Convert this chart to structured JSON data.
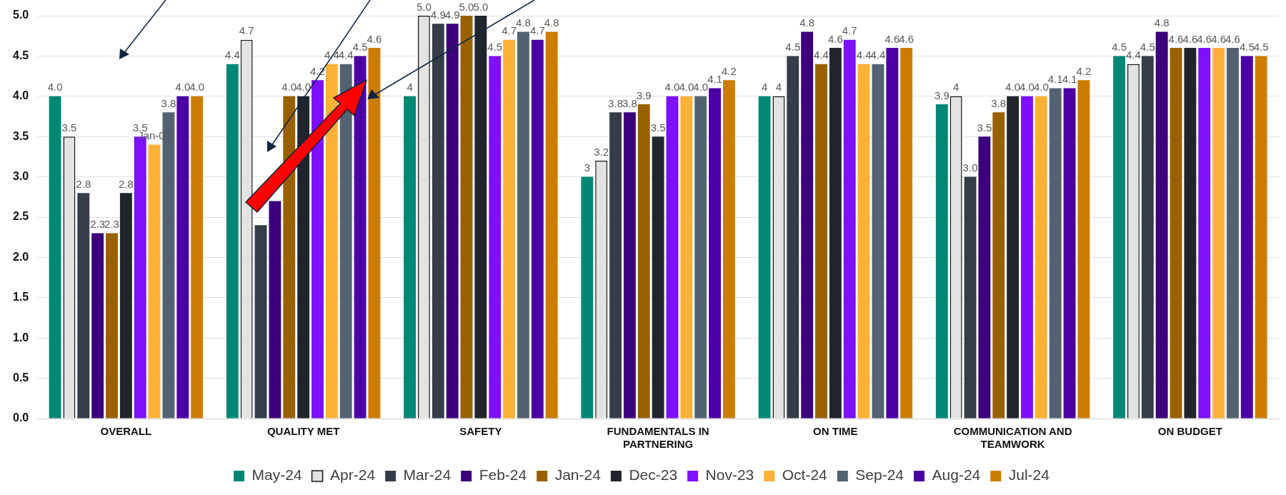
{
  "chart_data": {
    "type": "bar",
    "categories": [
      "OVERALL",
      "QUALITY MET",
      "SAFETY",
      "FUNDAMENTALS IN PARTNERING",
      "ON TIME",
      "COMMUNICATION AND TEAMWORK",
      "ON BUDGET"
    ],
    "series": [
      {
        "name": "May-24",
        "color": "#008875",
        "values": [
          4.0,
          4.4,
          4.0,
          3.0,
          4.0,
          3.9,
          4.5
        ],
        "value_labels": [
          "4.0",
          "4.4",
          "4",
          "3",
          "4",
          "3.9",
          "4.5"
        ]
      },
      {
        "name": "Apr-24",
        "color": "#e3e3e3",
        "values": [
          3.5,
          4.7,
          5.0,
          3.2,
          4.0,
          4.0,
          4.4
        ],
        "value_labels": [
          "3.5",
          "4.7",
          "5.0",
          "3.2",
          "4",
          "4",
          "4.4"
        ]
      },
      {
        "name": "Mar-24",
        "color": "#343d48",
        "values": [
          2.8,
          2.4,
          4.9,
          3.8,
          4.5,
          3.0,
          4.5
        ],
        "value_labels": [
          "2.8",
          null,
          "4.9",
          "3.8",
          "4.5",
          "3.0",
          "4.5"
        ]
      },
      {
        "name": "Feb-24",
        "color": "#3b007a",
        "values": [
          2.3,
          2.7,
          4.9,
          3.8,
          4.8,
          3.5,
          4.8
        ],
        "value_labels": [
          "2.3",
          null,
          "4.9",
          "3.8",
          "4.8",
          "3.5",
          "4.8"
        ]
      },
      {
        "name": "Jan-24",
        "color": "#996000",
        "values": [
          2.3,
          4.0,
          5.0,
          3.9,
          4.4,
          3.8,
          4.6
        ],
        "value_labels": [
          "2.3",
          "4.0",
          "5.0",
          "3.9",
          "4.4",
          "3.8",
          "4.6"
        ]
      },
      {
        "name": "Dec-23",
        "color": "#20252d",
        "values": [
          2.8,
          4.0,
          5.0,
          3.5,
          4.6,
          4.0,
          4.6
        ],
        "value_labels": [
          "2.8",
          "4.0",
          "5.0",
          "3.5",
          "4.6",
          "4.0",
          "4.6"
        ]
      },
      {
        "name": "Nov-23",
        "color": "#7c10ff",
        "values": [
          3.5,
          4.2,
          4.5,
          4.0,
          4.7,
          4.0,
          4.6
        ],
        "value_labels": [
          "3.5",
          "4.2",
          "4.5",
          "4.0",
          "4.7",
          "4.0",
          "4.6"
        ]
      },
      {
        "name": "Oct-24",
        "color": "#fdb136",
        "values": [
          3.4,
          4.4,
          4.7,
          4.0,
          4.4,
          4.0,
          4.6
        ],
        "value_labels": [
          "Jan-00",
          "4.4",
          "4.7",
          "4.0",
          "4.4",
          "4.0",
          "4.6"
        ]
      },
      {
        "name": "Sep-24",
        "color": "#536273",
        "values": [
          3.8,
          4.4,
          4.8,
          4.0,
          4.4,
          4.1,
          4.6
        ],
        "value_labels": [
          "3.8",
          "4.4",
          "4.8",
          "4.0",
          "4.4",
          "4.1",
          "4.6"
        ]
      },
      {
        "name": "Aug-24",
        "color": "#4b00a4",
        "values": [
          4.0,
          4.5,
          4.7,
          4.1,
          4.6,
          4.1,
          4.5
        ],
        "value_labels": [
          "4.0",
          "4.5",
          "4.7",
          "4.1",
          "4.6",
          "4.1",
          "4.5"
        ]
      },
      {
        "name": "Jul-24",
        "color": "#cc7d00",
        "values": [
          4.0,
          4.6,
          4.8,
          4.2,
          4.6,
          4.2,
          4.5
        ],
        "value_labels": [
          "4.0",
          "4.6",
          "4.8",
          "4.2",
          "4.6",
          "4.2",
          "4.5"
        ]
      }
    ],
    "ylim": [
      0,
      5
    ],
    "yticks": [
      {
        "value": 0,
        "label": "0.0"
      },
      {
        "value": 0.5,
        "label": "0.5"
      },
      {
        "value": 1,
        "label": "1.0"
      },
      {
        "value": 1.5,
        "label": "1.5"
      },
      {
        "value": 2,
        "label": "2.0"
      },
      {
        "value": 2.5,
        "label": "2.5"
      },
      {
        "value": 3,
        "label": "3.0"
      },
      {
        "value": 3.5,
        "label": "3.5"
      },
      {
        "value": 4,
        "label": "4.0"
      },
      {
        "value": 4.5,
        "label": "4.5"
      },
      {
        "value": 5,
        "label": "5.0"
      }
    ],
    "grid": "y",
    "legend": "bottom"
  }
}
